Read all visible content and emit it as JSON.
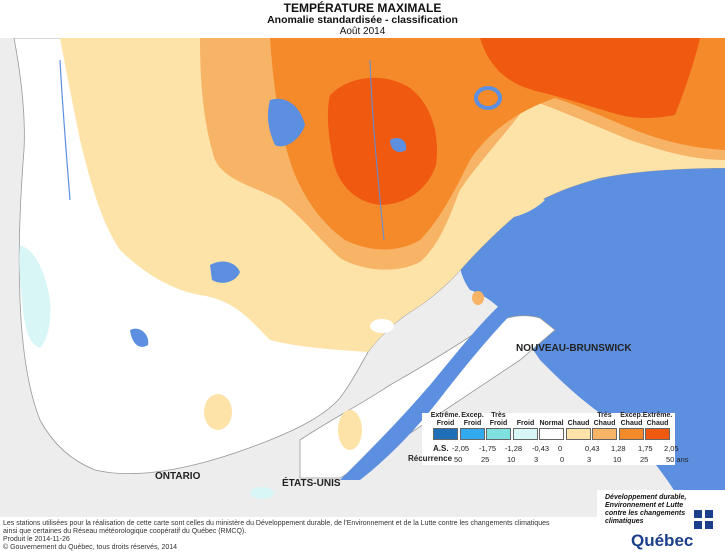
{
  "title": "TEMPÉRATURE MAXIMALE",
  "subtitle": "Anomalie standardisée - classification",
  "period": "Août 2014",
  "map_labels": {
    "nb": "NOUVEAU-BRUNSWICK",
    "ontario": "ONTARIO",
    "usa": "ÉTATS-UNIS"
  },
  "legend": {
    "class_header_lines": [
      [
        "Extrême.",
        "Froid"
      ],
      [
        "Excep.",
        "Froid"
      ],
      [
        "Très",
        "Froid"
      ],
      [
        "Froid"
      ],
      [
        "Normal"
      ],
      [
        "Chaud"
      ],
      [
        "Très",
        "Chaud"
      ],
      [
        "Excep.",
        "Chaud"
      ],
      [
        "Extrême.",
        "Chaud"
      ]
    ],
    "swatch_colors": [
      "#1f6fb8",
      "#33aaee",
      "#7fe0e0",
      "#d9f6f6",
      "#ffffff",
      "#fde3a7",
      "#f7b467",
      "#f58a2a",
      "#ef5a10"
    ],
    "as_label": "A.S.",
    "as_values": [
      "-2,05",
      "-1,75",
      "-1,28",
      "-0,43",
      "0",
      "0,43",
      "1,28",
      "1,75",
      "2,05"
    ],
    "recurrence_label": "Récurrence",
    "recurrence_values": [
      "50",
      "25",
      "10",
      "3",
      "0",
      "3",
      "10",
      "25",
      "50 ans"
    ]
  },
  "footer": {
    "line1": "Les stations utilisées pour la réalisation de cette carte sont celles du ministère du Développement durable, de l'Environnement et de la Lutte contre les changements climatiques",
    "line2": "ainsi que certaines du Réseau météorologique coopératif du Québec (RMCQ).",
    "produced": "Produit le 2014-11-26",
    "copyright": "© Gouvernement du Québec, tous droits réservés, 2014"
  },
  "logo": {
    "ministry_lines": [
      "Développement durable,",
      "Environnement et Lutte",
      "contre les changements",
      "climatiques"
    ],
    "name": "Québec"
  },
  "colors": {
    "water": "#5c8fe0",
    "outside_land": "#ededed",
    "normal": "#ffffff",
    "warm": "#fde3a7",
    "very_warm": "#f7b467",
    "excep_warm": "#f58a2a",
    "extreme_warm": "#ef5a10",
    "cold": "#d9f6f6"
  }
}
